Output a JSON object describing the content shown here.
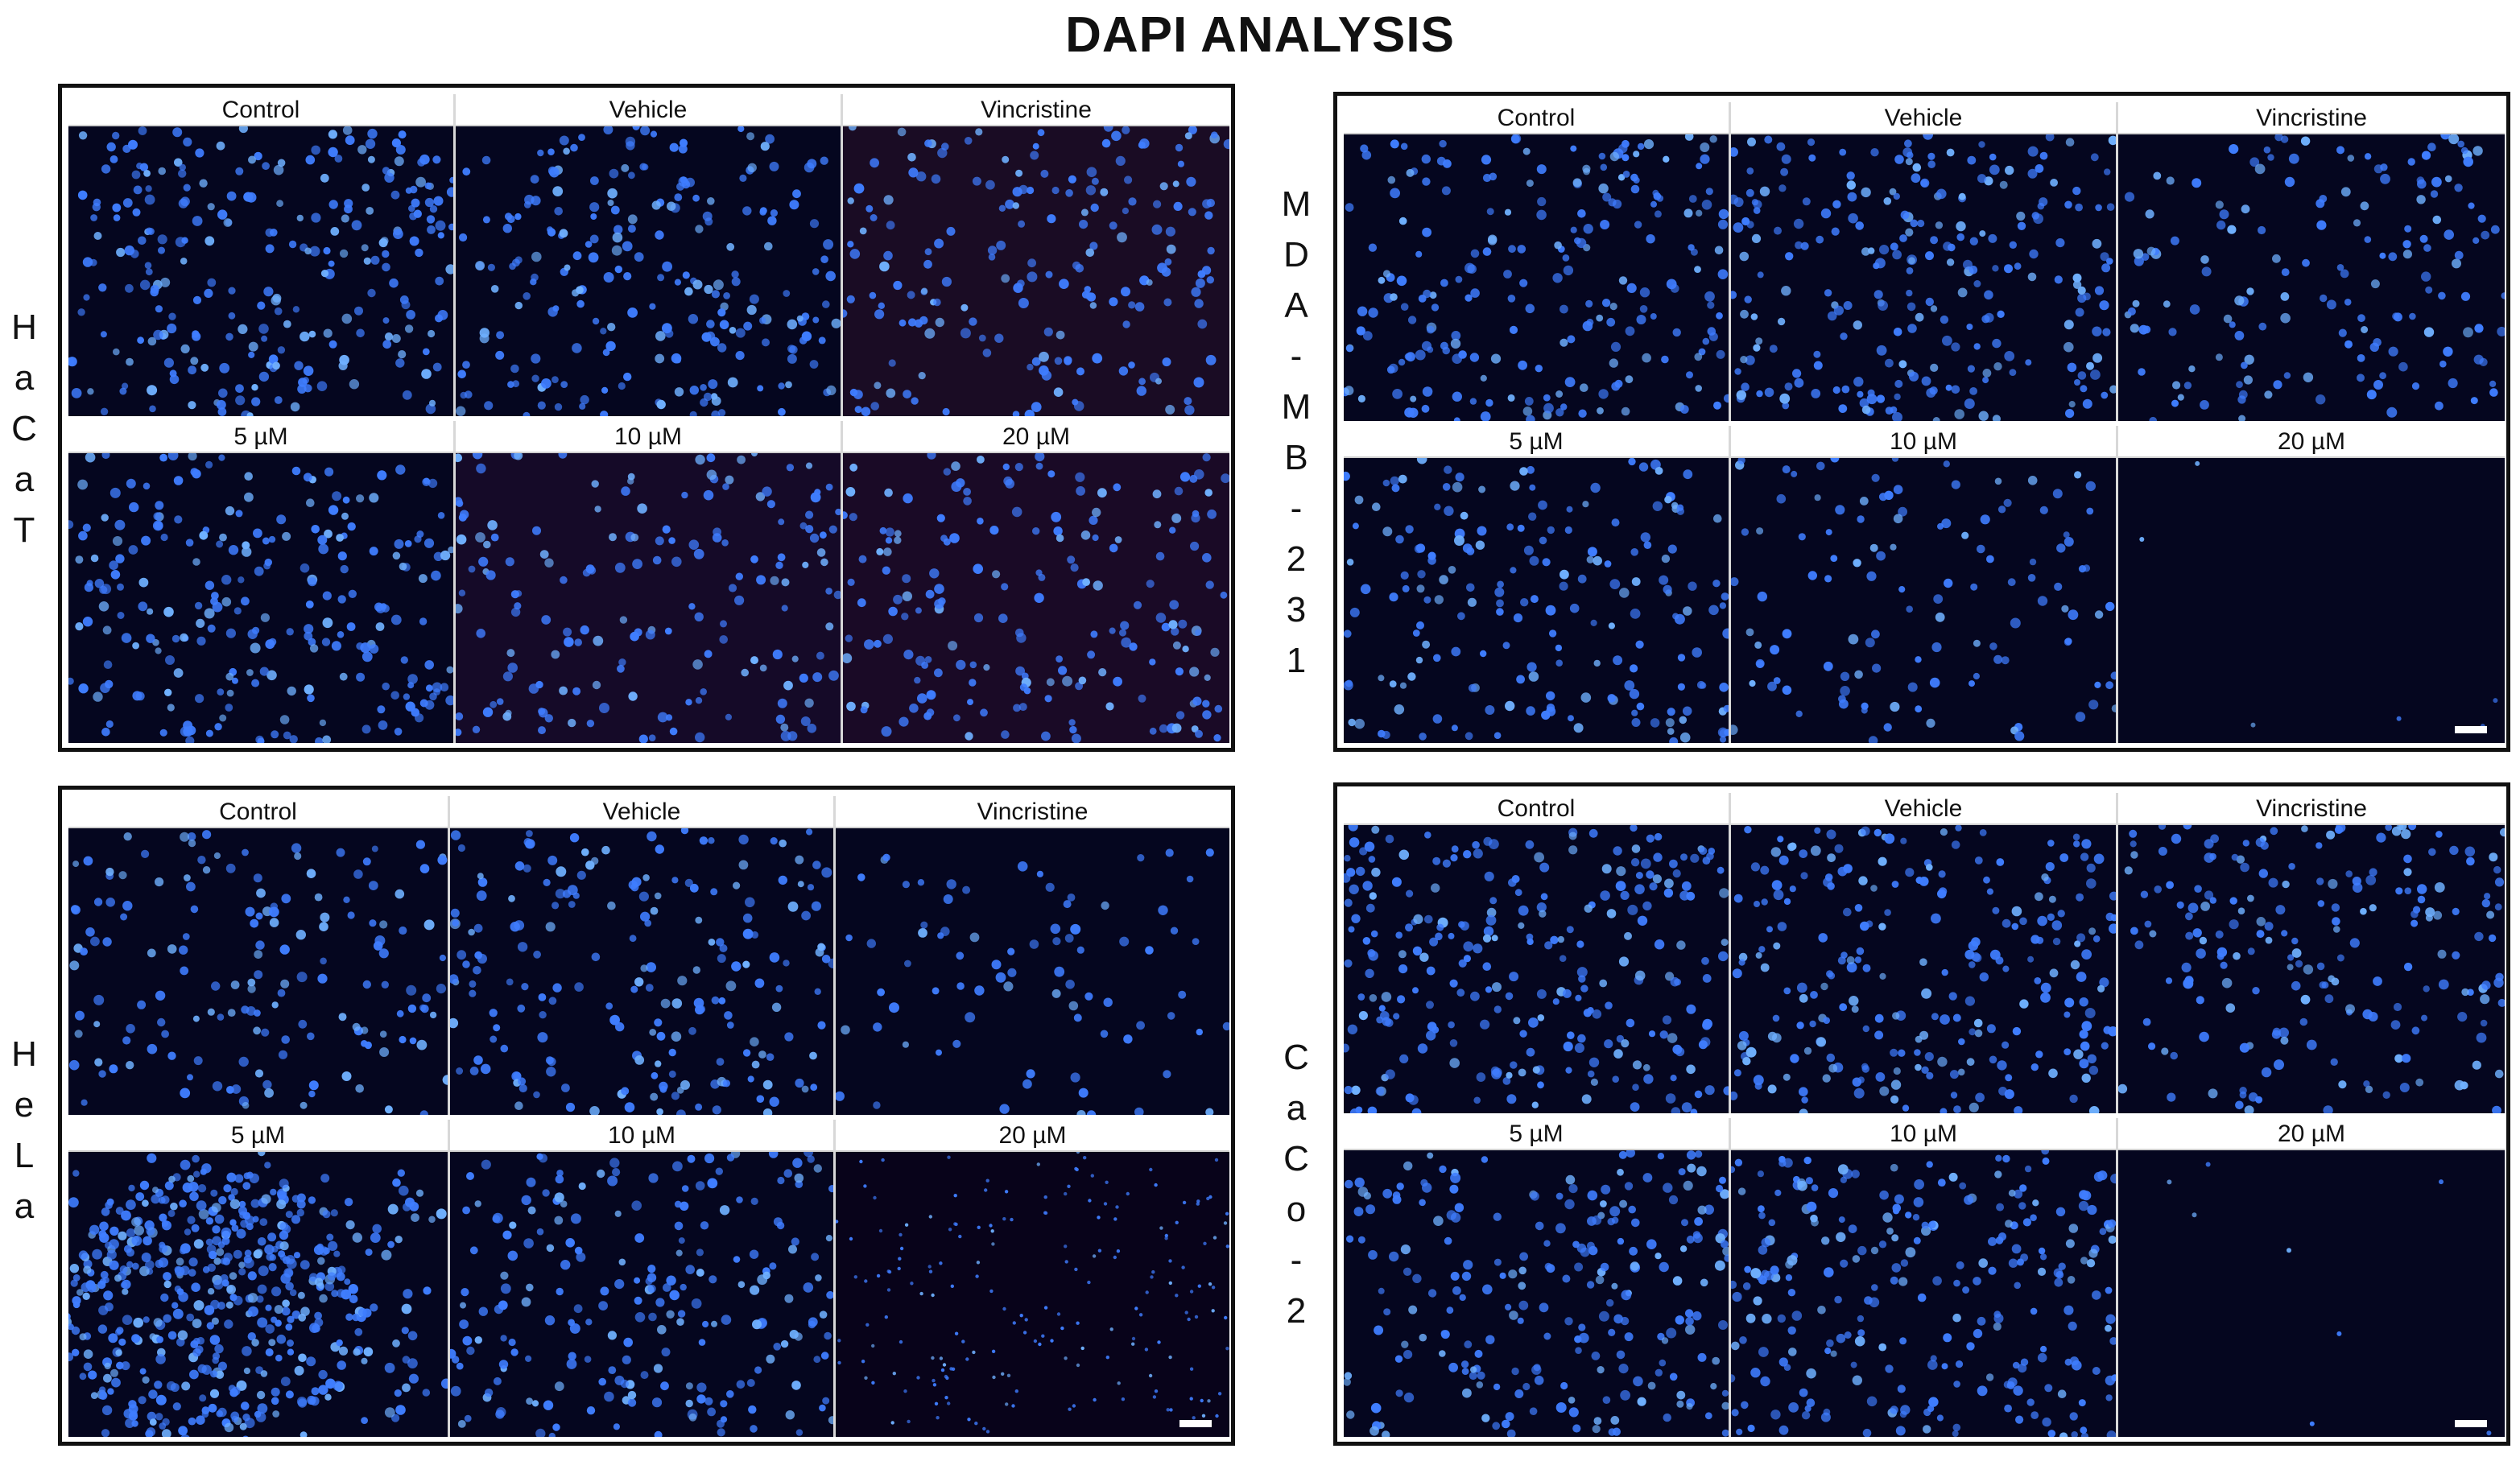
{
  "figure": {
    "title": "DAPI ANALYSIS",
    "panels": [
      {
        "id": "hacat",
        "cell_line": "HaCaT",
        "labels": [
          "Control",
          "Vehicle",
          "Vincristine",
          "5 µM",
          "10 µM",
          "20 µM"
        ]
      },
      {
        "id": "mda",
        "cell_line": "MDA-MB-231",
        "labels": [
          "Control",
          "Vehicle",
          "Vincristine",
          "5 µM",
          "10 µM",
          "20 µM"
        ]
      },
      {
        "id": "hela",
        "cell_line": "HeLa",
        "labels": [
          "Control",
          "Vehicle",
          "Vincristine",
          "5 µM",
          "10 µM",
          "20 µM"
        ]
      },
      {
        "id": "caco",
        "cell_line": "CaCo-2",
        "labels": [
          "Control",
          "Vehicle",
          "Vincristine",
          "5 µM",
          "10 µM",
          "20 µM"
        ]
      }
    ]
  },
  "colors": {
    "nucleus": "#3f7dff",
    "nucleus_bright": "#6fb0ff",
    "background": "#05061f",
    "background_purple": "#1a0a2a"
  },
  "icons": [
    "scale-bar-icon"
  ],
  "micrographs": {
    "hacat": {
      "density": [
        260,
        230,
        190,
        240,
        170,
        190
      ],
      "tint": [
        "#05061f",
        "#05061f",
        "#1a0c24",
        "#05061f",
        "#150a28",
        "#1a0a26"
      ]
    },
    "mda": {
      "density": [
        220,
        250,
        160,
        190,
        120,
        6
      ],
      "tint": [
        "#05061f",
        "#05061f",
        "#05061f",
        "#05061f",
        "#05061f",
        "#05061f"
      ]
    },
    "hela": {
      "density": [
        160,
        200,
        80,
        520,
        220,
        190
      ],
      "tint": [
        "#05061f",
        "#05061f",
        "#05061f",
        "#05061f",
        "#05061f",
        "#08031a"
      ]
    },
    "caco": {
      "density": [
        260,
        250,
        200,
        230,
        260,
        8
      ],
      "tint": [
        "#05061f",
        "#05061f",
        "#05061f",
        "#05061f",
        "#05061f",
        "#05061f"
      ]
    }
  }
}
